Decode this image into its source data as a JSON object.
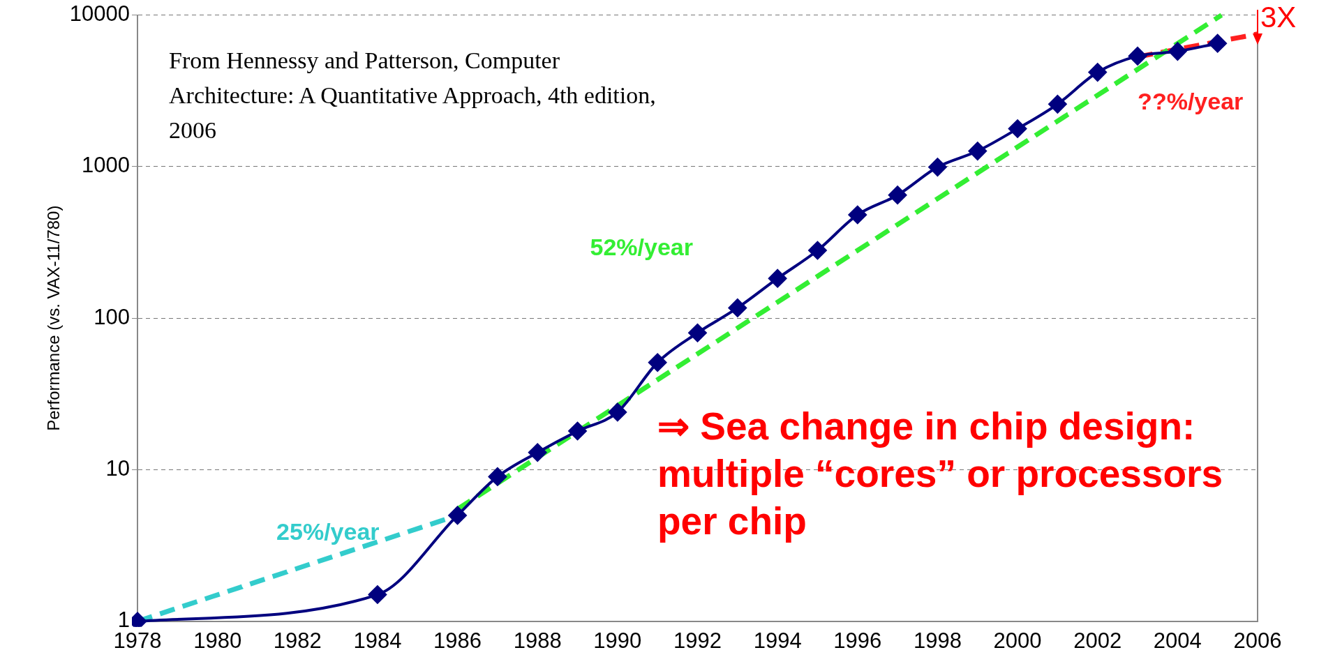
{
  "chart_data": {
    "type": "line",
    "ylabel": "Performance (vs. VAX-11/780)",
    "x": [
      1978,
      1984,
      1986,
      1987,
      1988,
      1989,
      1990,
      1991,
      1992,
      1993,
      1994,
      1995,
      1996,
      1997,
      1998,
      1999,
      2000,
      2001,
      2002,
      2003,
      2004,
      2005
    ],
    "series": [
      {
        "color": "#00007f",
        "marker": "diamond",
        "values": [
          1,
          1.5,
          5,
          9,
          13,
          18,
          24,
          51,
          80,
          117,
          183,
          280,
          481,
          649,
          993,
          1267,
          1779,
          2584,
          4195,
          5364,
          5764,
          6505
        ]
      },
      {
        "name": "25%/year",
        "type": "line",
        "color": "#33cccc",
        "line_style": "dashed",
        "marker": "none",
        "x": [
          1978,
          1986
        ],
        "values": [
          1,
          5
        ]
      },
      {
        "name": "52%/year",
        "type": "line",
        "color": "#33ee33",
        "line_style": "dashed",
        "marker": "none",
        "x": [
          1986,
          2005.1
        ],
        "values": [
          5.5,
          10000
        ]
      },
      {
        "name": "??%/year",
        "type": "line",
        "color": "#ff2020",
        "line_style": "dashed",
        "marker": "none",
        "x": [
          2003,
          2006
        ],
        "values": [
          5300,
          7500
        ]
      }
    ],
    "xlim": [
      1978,
      2006
    ],
    "xticks": [
      1978,
      1980,
      1982,
      1984,
      1986,
      1988,
      1990,
      1992,
      1994,
      1996,
      1998,
      2000,
      2002,
      2004,
      2006
    ],
    "ylim": [
      1,
      10000
    ],
    "yticks": [
      1,
      10,
      100,
      1000,
      10000
    ],
    "log": "y",
    "grid": "y",
    "legend": false,
    "annotations": [
      "From Hennessy and Patterson, Computer Architecture: A Quantitative Approach, 4th edition, 2006",
      "⇒ Sea change in chip design: multiple “cores” or processors per chip",
      "3X"
    ]
  }
}
